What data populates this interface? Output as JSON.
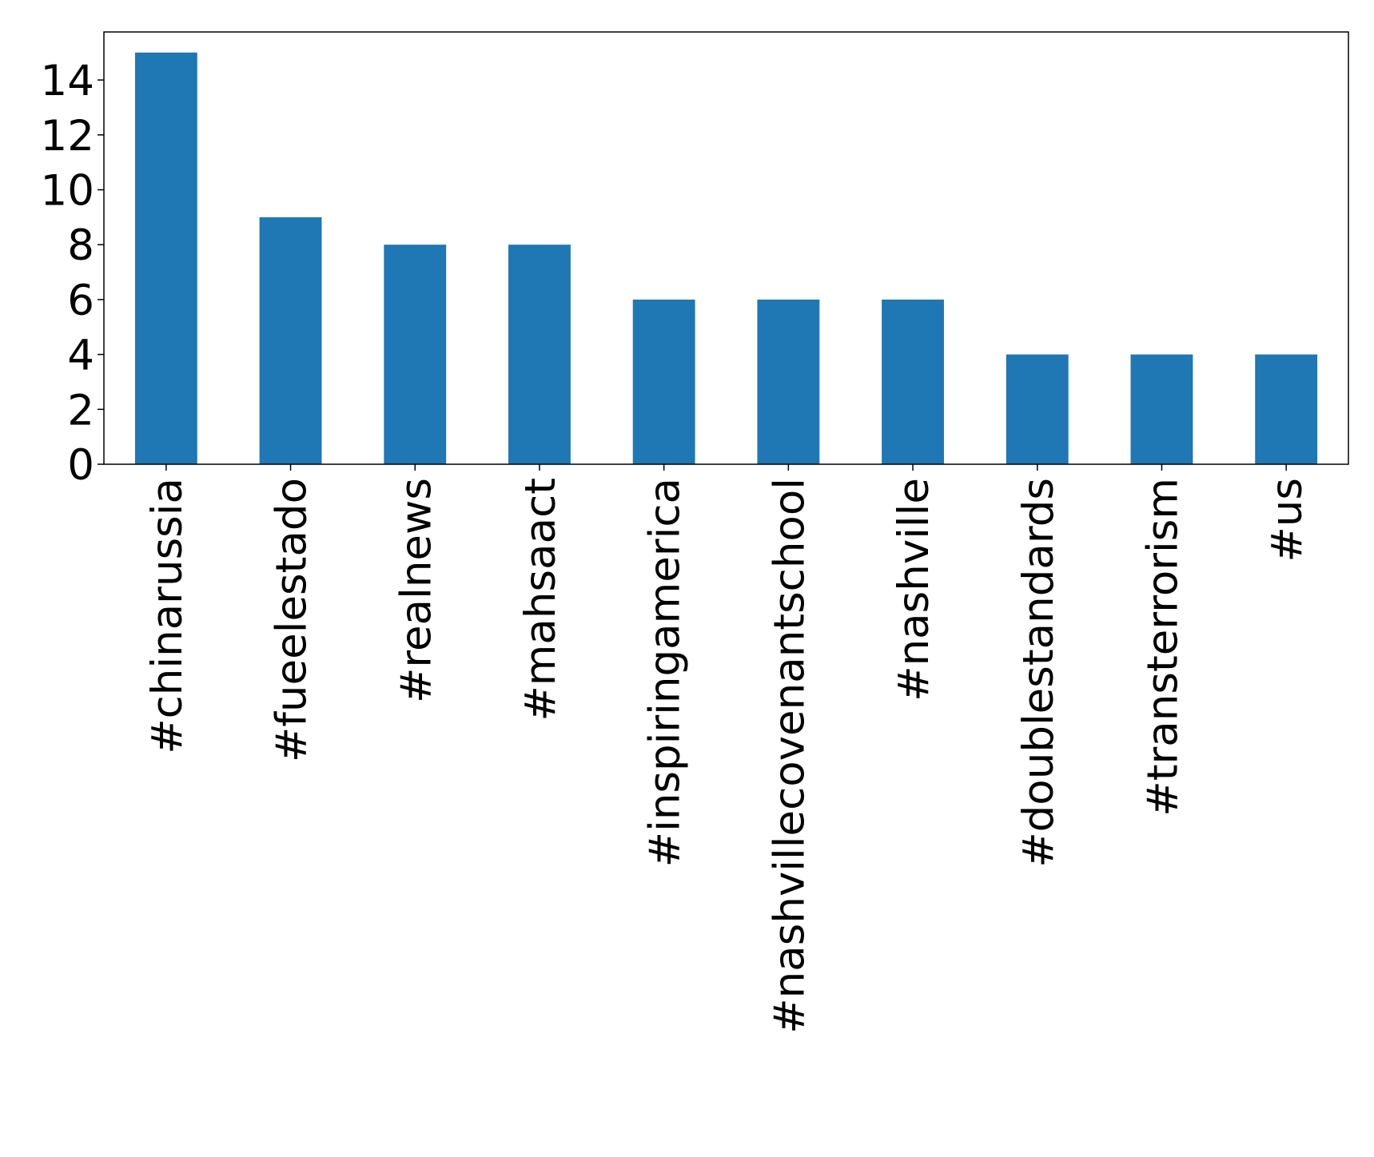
{
  "chart_data": {
    "type": "bar",
    "categories": [
      "#chinarussia",
      "#fueelestado",
      "#realnews",
      "#mahsaact",
      "#inspiringamerica",
      "#nashvillecovenantschool",
      "#nashville",
      "#doublestandards",
      "#transterrorism",
      "#us"
    ],
    "values": [
      15,
      9,
      8,
      8,
      6,
      6,
      6,
      4,
      4,
      4
    ],
    "color": "#1f77b4",
    "ylim": [
      0,
      15.75
    ],
    "yticks": [
      0,
      2,
      4,
      6,
      8,
      10,
      12,
      14
    ],
    "grid": false
  }
}
